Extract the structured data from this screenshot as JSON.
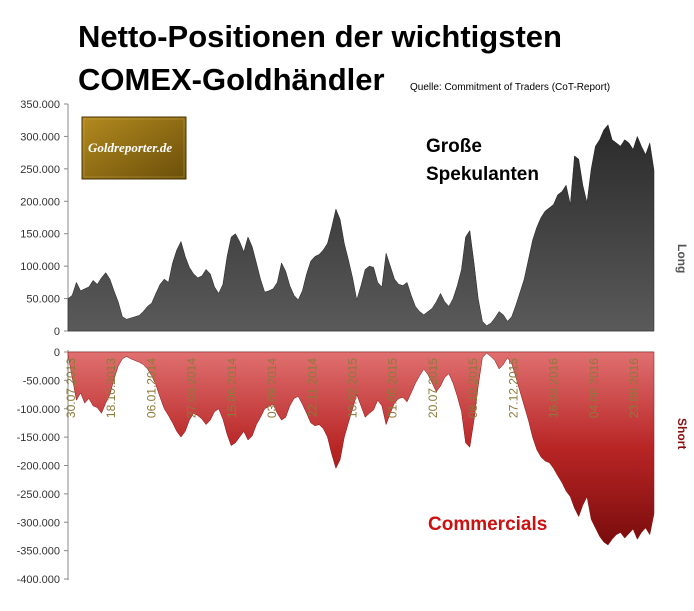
{
  "title_line1": "Netto-Positionen der wichtigsten",
  "title_line2": "COMEX-Goldhändler",
  "source": "Quelle: Commitment of Traders (CoT-Report)",
  "logo_text": "Goldreporter.de",
  "annotation_top": "Große Spekulanten",
  "annotation_top_line1": "Große",
  "annotation_top_line2": "Spekulanten",
  "annotation_bottom": "Commercials",
  "side_label_long": "Long",
  "side_label_short": "Short",
  "colors": {
    "speculators_fill": "#3a3a3a",
    "commercials_fill": "#b22222",
    "annotation_red": "#cc1010",
    "tick_label_gold": "#8b7a3a",
    "logo_bg": "#8a6a14"
  },
  "chart_data": [
    {
      "type": "area",
      "name": "Große Spekulanten",
      "ylim": [
        0,
        350000
      ],
      "yticks": [
        "350.000",
        "300.000",
        "250.000",
        "200.000",
        "150.000",
        "100.000",
        "50.000",
        "0"
      ],
      "ytick_values": [
        350000,
        300000,
        250000,
        200000,
        150000,
        100000,
        50000,
        0
      ],
      "y": [
        50000,
        55000,
        75000,
        62000,
        65000,
        68000,
        78000,
        72000,
        82000,
        90000,
        80000,
        62000,
        45000,
        22000,
        18000,
        20000,
        22000,
        24000,
        30000,
        38000,
        43000,
        58000,
        72000,
        80000,
        75000,
        105000,
        125000,
        138000,
        115000,
        98000,
        88000,
        82000,
        85000,
        95000,
        88000,
        68000,
        58000,
        72000,
        115000,
        145000,
        150000,
        138000,
        122000,
        145000,
        130000,
        105000,
        80000,
        60000,
        62000,
        65000,
        75000,
        105000,
        92000,
        70000,
        55000,
        48000,
        62000,
        88000,
        108000,
        115000,
        118000,
        125000,
        135000,
        160000,
        188000,
        172000,
        135000,
        110000,
        82000,
        48000,
        70000,
        95000,
        100000,
        98000,
        75000,
        68000,
        120000,
        100000,
        80000,
        72000,
        70000,
        75000,
        55000,
        38000,
        30000,
        25000,
        30000,
        35000,
        45000,
        58000,
        45000,
        38000,
        50000,
        70000,
        95000,
        145000,
        155000,
        105000,
        50000,
        15000,
        8000,
        12000,
        20000,
        30000,
        25000,
        15000,
        22000,
        40000,
        60000,
        80000,
        110000,
        140000,
        160000,
        175000,
        185000,
        190000,
        195000,
        210000,
        215000,
        225000,
        195000,
        270000,
        265000,
        225000,
        198000,
        250000,
        285000,
        295000,
        310000,
        318000,
        295000,
        290000,
        285000,
        295000,
        290000,
        280000,
        300000,
        285000,
        272000,
        290000,
        248000
      ],
      "ylabel": "Long"
    },
    {
      "type": "area",
      "name": "Commercials",
      "ylim": [
        -400000,
        0
      ],
      "yticks": [
        "0",
        "-50.000",
        "-100.000",
        "-150.000",
        "-200.000",
        "-250.000",
        "-300.000",
        "-350.000",
        "-400.000"
      ],
      "ytick_values": [
        0,
        -50000,
        -100000,
        -150000,
        -200000,
        -250000,
        -300000,
        -350000,
        -400000
      ],
      "y": [
        -5000,
        -45000,
        -85000,
        -72000,
        -90000,
        -82000,
        -95000,
        -98000,
        -108000,
        -90000,
        -75000,
        -48000,
        -25000,
        -12000,
        -8000,
        -12000,
        -15000,
        -18000,
        -22000,
        -30000,
        -42000,
        -58000,
        -80000,
        -100000,
        -112000,
        -125000,
        -140000,
        -150000,
        -140000,
        -120000,
        -108000,
        -112000,
        -118000,
        -128000,
        -120000,
        -105000,
        -100000,
        -118000,
        -145000,
        -165000,
        -160000,
        -150000,
        -140000,
        -155000,
        -148000,
        -128000,
        -115000,
        -100000,
        -96000,
        -92000,
        -108000,
        -120000,
        -115000,
        -95000,
        -82000,
        -78000,
        -92000,
        -108000,
        -125000,
        -130000,
        -128000,
        -135000,
        -150000,
        -180000,
        -205000,
        -190000,
        -150000,
        -125000,
        -100000,
        -75000,
        -95000,
        -115000,
        -108000,
        -102000,
        -85000,
        -95000,
        -128000,
        -108000,
        -90000,
        -82000,
        -80000,
        -88000,
        -72000,
        -55000,
        -42000,
        -30000,
        -40000,
        -55000,
        -70000,
        -60000,
        -45000,
        -38000,
        -55000,
        -78000,
        -105000,
        -160000,
        -168000,
        -120000,
        -60000,
        -10000,
        -2000,
        -8000,
        -15000,
        -30000,
        -22000,
        -10000,
        -20000,
        -45000,
        -70000,
        -95000,
        -120000,
        -150000,
        -172000,
        -185000,
        -192000,
        -195000,
        -205000,
        -218000,
        -230000,
        -245000,
        -255000,
        -275000,
        -290000,
        -270000,
        -255000,
        -295000,
        -310000,
        -325000,
        -335000,
        -340000,
        -330000,
        -322000,
        -318000,
        -328000,
        -320000,
        -312000,
        -330000,
        -318000,
        -310000,
        -322000,
        -285000
      ],
      "ylabel": "Short"
    }
  ],
  "x_tick_labels": [
    "30.07.2013",
    "18.10.2013",
    "06.01.2014",
    "27.03.2014",
    "15.06.2014",
    "03.09.2014",
    "22.11.2014",
    "10.02.2015",
    "01.05.2015",
    "20.07.2015",
    "08.10.2015",
    "27.12.2015",
    "16.03.2016",
    "04.06.2016",
    "23.08.2016"
  ]
}
